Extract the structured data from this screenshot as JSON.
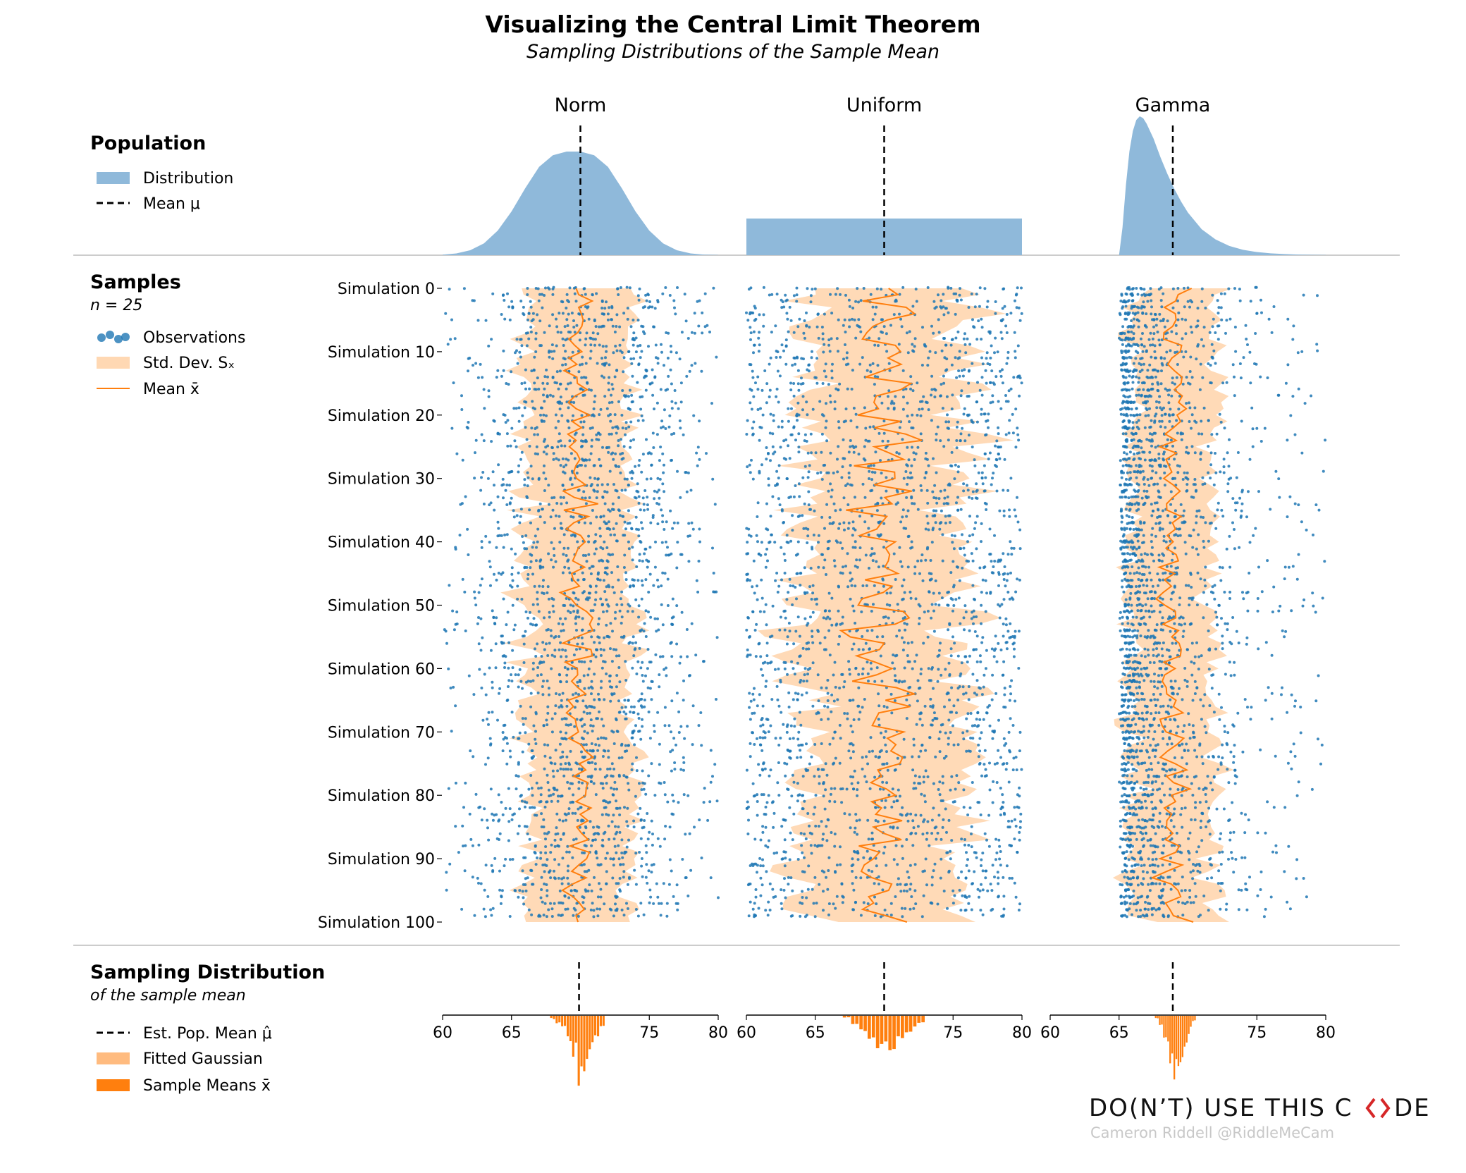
{
  "header": {
    "title": "Visualizing the Central Limit Theorem",
    "subtitle": "Sampling Distributions of the Sample Mean"
  },
  "legend_population": {
    "heading": "Population",
    "items": [
      {
        "label": "Distribution",
        "kind": "patch",
        "color": "#8fb9da"
      },
      {
        "label": "Mean μ",
        "kind": "dashed",
        "color": "#000000"
      }
    ]
  },
  "legend_samples": {
    "heading": "Samples",
    "subheading": "n = 25",
    "items": [
      {
        "label": "Observations",
        "kind": "dots",
        "color": "#1f77b4"
      },
      {
        "label": "Std. Dev. Sₓ",
        "kind": "patch",
        "color": "#ffd8b3"
      },
      {
        "label": "Mean x̄",
        "kind": "line",
        "color": "#ff7f0e"
      }
    ]
  },
  "legend_sampling": {
    "heading": "Sampling Distribution",
    "subheading": "of the sample mean",
    "items": [
      {
        "label": "Est. Pop. Mean μ̂",
        "kind": "dashed",
        "color": "#000000"
      },
      {
        "label": "Fitted Gaussian",
        "kind": "patch",
        "color": "#ffbb7f"
      },
      {
        "label": "Sample Means x̄",
        "kind": "bar",
        "color": "#ff7f0e"
      }
    ]
  },
  "colors": {
    "population_fill": "#8fb9da",
    "observations": "#1f77b4",
    "std_band": "#ffd8b3",
    "mean_line": "#ff7f0e",
    "gaussian_fill": "#ffbb7f",
    "sample_means": "#ff7f0e",
    "divider": "#cccccc",
    "brand_accent": "#d62728",
    "credit": "#c8c8c8"
  },
  "chart_data": {
    "type": "scatter",
    "sample_size": 25,
    "simulations": 100,
    "sample_tick_labels": [
      "Simulation 0",
      "Simulation 10",
      "Simulation 20",
      "Simulation 30",
      "Simulation 40",
      "Simulation 50",
      "Simulation 60",
      "Simulation 70",
      "Simulation 80",
      "Simulation 90",
      "Simulation 100"
    ],
    "sampling_xlim": [
      60,
      80
    ],
    "sampling_ticks": [
      "60",
      "65",
      "75",
      "80"
    ],
    "columns": [
      {
        "name": "Norm",
        "population_mean": 70,
        "xlim": [
          60,
          80
        ],
        "pdf_x": [
          60,
          61,
          62,
          63,
          64,
          65,
          66,
          67,
          68,
          69,
          70,
          71,
          72,
          73,
          74,
          75,
          76,
          77,
          78,
          79,
          80
        ],
        "pdf_y": [
          0.0009,
          0.0029,
          0.0081,
          0.0194,
          0.0403,
          0.0717,
          0.1099,
          0.1447,
          0.1638,
          0.1699,
          0.1699,
          0.1638,
          0.1447,
          0.1099,
          0.0717,
          0.0403,
          0.0194,
          0.0081,
          0.0029,
          0.0009,
          0.0003
        ],
        "obs_spread": 4.5,
        "band_sd": 3.8,
        "est_mean": 69.9,
        "means_hist": {
          "bins": [
            67.8,
            68.2,
            68.6,
            69.0,
            69.4,
            69.8,
            70.2,
            70.6,
            71.0,
            71.4,
            71.8
          ],
          "counts": [
            1,
            2,
            3,
            7,
            11,
            19,
            18,
            10,
            6,
            3,
            1
          ]
        }
      },
      {
        "name": "Uniform",
        "population_mean": 70,
        "xlim": [
          60,
          80
        ],
        "pdf_x": [
          60,
          80
        ],
        "pdf_y": [
          0.05,
          0.05
        ],
        "obs_spread": 10,
        "band_sd": 5.8,
        "est_mean": 70.0,
        "means_hist": {
          "bins": [
            67.0,
            67.6,
            68.2,
            68.8,
            69.4,
            70.0,
            70.6,
            71.2,
            71.8,
            72.4,
            73.0
          ],
          "counts": [
            1,
            4,
            7,
            11,
            15,
            17,
            14,
            11,
            7,
            3,
            1
          ]
        }
      },
      {
        "name": "Gamma",
        "population_mean": 68.9,
        "xlim": [
          60,
          80
        ],
        "pdf_x": [
          65,
          65.25,
          65.5,
          65.75,
          66,
          66.25,
          66.5,
          66.75,
          67,
          67.5,
          68,
          68.5,
          69,
          69.5,
          70,
          71,
          72,
          73,
          74,
          75,
          76,
          77,
          78,
          79,
          80
        ],
        "pdf_y": [
          0,
          0.15,
          0.38,
          0.56,
          0.67,
          0.73,
          0.75,
          0.74,
          0.71,
          0.63,
          0.53,
          0.44,
          0.36,
          0.29,
          0.23,
          0.14,
          0.085,
          0.05,
          0.029,
          0.017,
          0.01,
          0.006,
          0.0035,
          0.002,
          0.001
        ],
        "obs_spread": 3.9,
        "band_sd": 3.0,
        "est_mean": 68.9,
        "means_hist": {
          "bins": [
            67.6,
            67.9,
            68.2,
            68.5,
            68.8,
            69.1,
            69.4,
            69.7,
            70.0,
            70.3,
            70.6
          ],
          "counts": [
            1,
            3,
            7,
            13,
            19,
            20,
            15,
            9,
            5,
            2,
            1
          ]
        }
      }
    ]
  },
  "branding": {
    "logo_left": "DO(N’T) USE THIS C",
    "logo_right": "DE",
    "credit": "Cameron Riddell @RiddleMeCam"
  }
}
